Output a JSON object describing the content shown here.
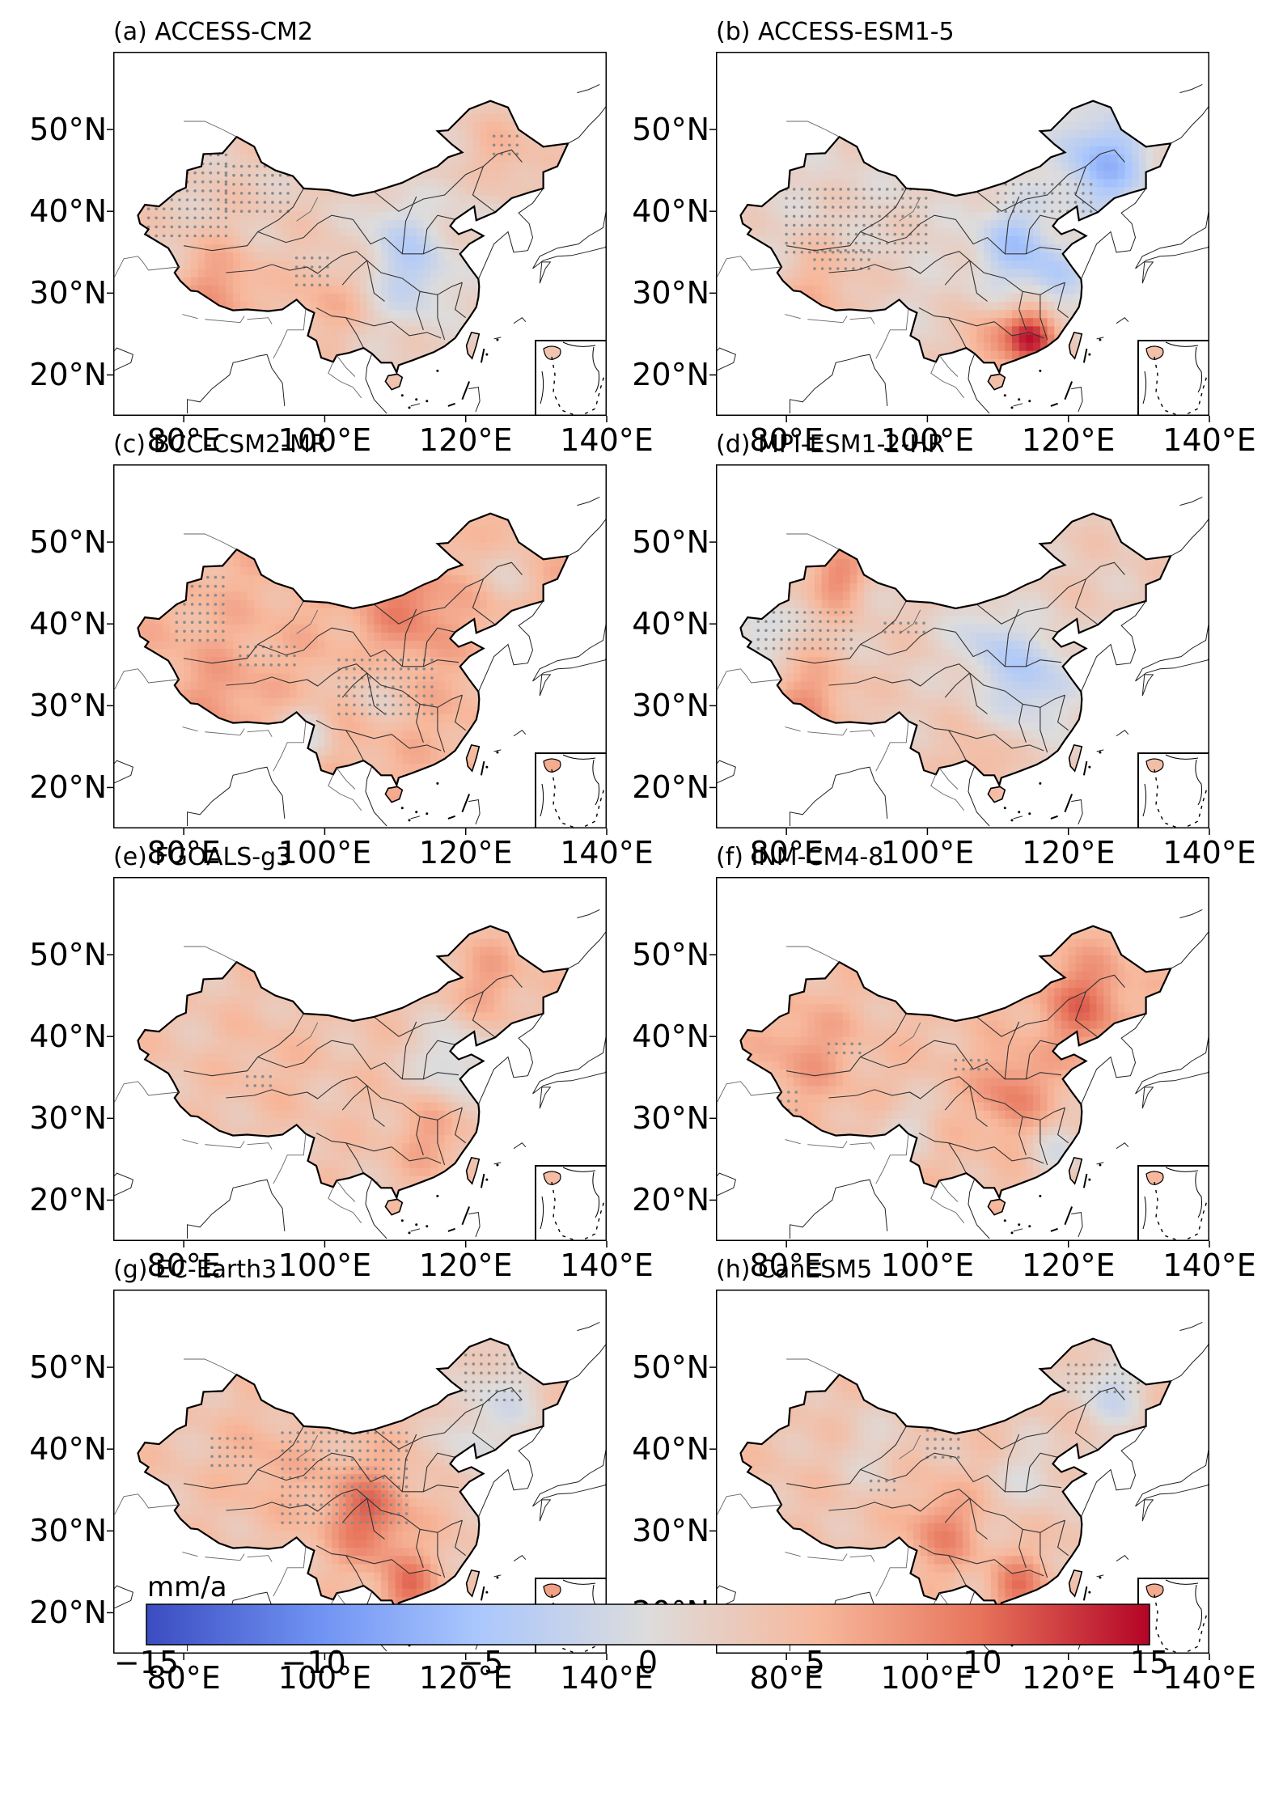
{
  "figure": {
    "panels": [
      {
        "label": "(a) ACCESS-CM2",
        "pattern": "a"
      },
      {
        "label": "(b) ACCESS-ESM1-5",
        "pattern": "b"
      },
      {
        "label": "(c) BCC-CSM2-MR",
        "pattern": "c"
      },
      {
        "label": "(d) MPI-ESM1-2-HR",
        "pattern": "d"
      },
      {
        "label": "(e) FGOALS-g3",
        "pattern": "e"
      },
      {
        "label": "(f) INM-CM4-8",
        "pattern": "f"
      },
      {
        "label": "(g) EC-Earth3",
        "pattern": "g"
      },
      {
        "label": "(h) CanESM5",
        "pattern": "h"
      }
    ],
    "lat_ticks": [
      "50°N",
      "40°N",
      "30°N",
      "20°N"
    ],
    "lon_ticks": [
      "80°E",
      "100°E",
      "120°E",
      "140°E"
    ],
    "colorbar": {
      "unit": "mm/a",
      "min": -15,
      "max": 15,
      "tick_labels": [
        "−15",
        "−10",
        "−5",
        "0",
        "5",
        "10",
        "15"
      ],
      "colors": [
        "#3b4cc0",
        "#6f92f3",
        "#aac7fd",
        "#dddcdc",
        "#f7b89c",
        "#e7745b",
        "#b40426"
      ]
    }
  }
}
